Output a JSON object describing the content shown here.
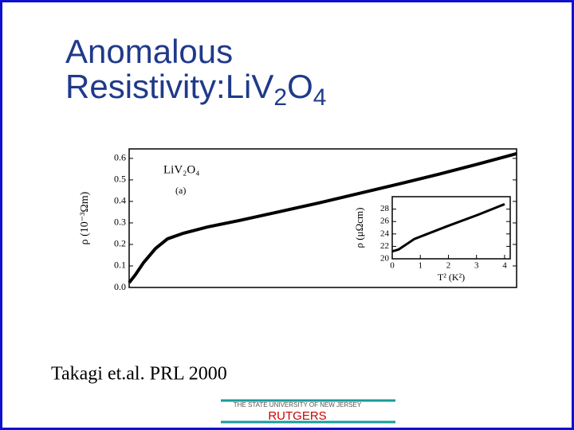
{
  "slide": {
    "title": {
      "line1": "Anomalous",
      "line2": "Resistivity:LiV",
      "sub1": "2",
      "mid": "O",
      "sub2": "4"
    },
    "citation": "Takagi et.al.  PRL  2000",
    "footer": {
      "university": "THE STATE UNIVERSITY OF NEW JERSEY",
      "name": "RUTGERS"
    }
  },
  "chart_data": [
    {
      "type": "line",
      "ylabel": "ρ (10⁻³Ωm)",
      "annotations": [
        "LiV₂O₄",
        "(a)"
      ],
      "x": [
        0,
        0.016,
        0.037,
        0.068,
        0.099,
        0.14,
        0.202,
        0.284,
        0.387,
        0.49,
        0.593,
        0.696,
        0.798,
        0.901,
        1
      ],
      "series": [
        {
          "color": "#000000",
          "values": [
            0.022,
            0.059,
            0.115,
            0.181,
            0.226,
            0.252,
            0.281,
            0.311,
            0.352,
            0.393,
            0.437,
            0.481,
            0.526,
            0.574,
            0.622
          ]
        }
      ],
      "xlim": [
        0,
        1
      ],
      "ylim": [
        0,
        0.644
      ],
      "yticks": [
        {
          "value": 0,
          "label": "0.0"
        },
        0.1,
        0.2,
        0.3,
        0.4,
        0.5,
        0.6
      ]
    },
    {
      "type": "line",
      "xlabel": "T² (K²)",
      "ylabel": "ρ (μΩcm)",
      "x": [
        0,
        0.23,
        0.79,
        1.93,
        3.06,
        4
      ],
      "series": [
        {
          "color": "#000000",
          "values": [
            21.2,
            21.5,
            23.2,
            25.2,
            27.1,
            28.8
          ]
        }
      ],
      "xlim": [
        0,
        4.2
      ],
      "ylim": [
        20,
        30
      ],
      "xticks": [
        0,
        1,
        2,
        3,
        4
      ],
      "yticks": [
        20,
        22,
        24,
        26,
        28
      ]
    }
  ]
}
